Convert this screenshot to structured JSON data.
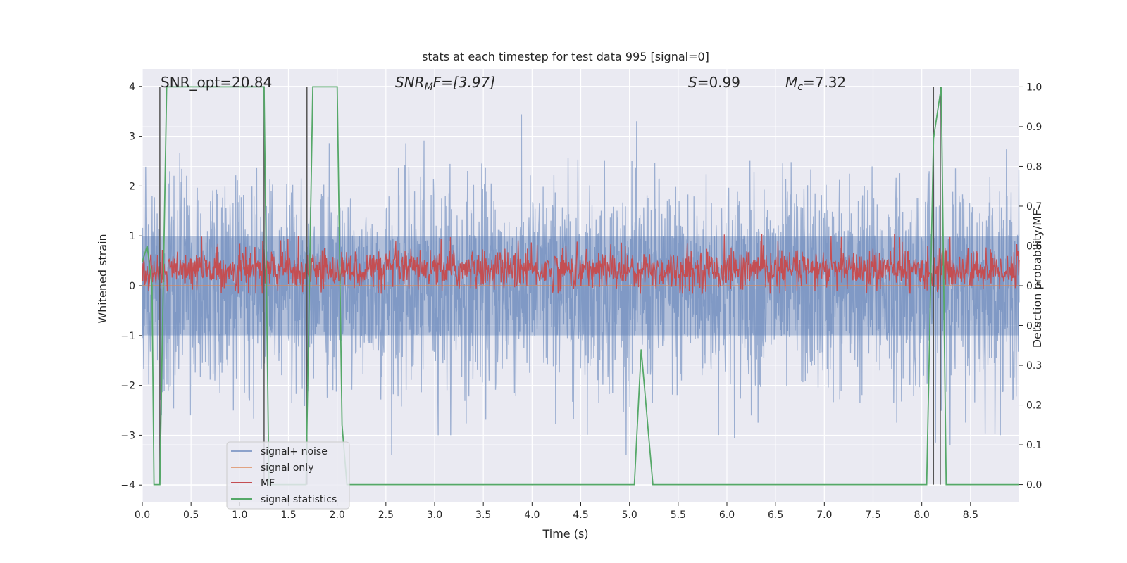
{
  "chart_data": {
    "type": "line",
    "title": "stats at each timestep for test data 995 [signal=0]",
    "xlabel": "Time (s)",
    "ylabel_left": "Whitened strain",
    "ylabel_right": "Detection probability/MF",
    "xlim": [
      0,
      9.0
    ],
    "ylim_left": [
      -4.0,
      4.0
    ],
    "ylim_right": [
      -0.045,
      1.045
    ],
    "x_ticks": [
      0.0,
      0.5,
      1.0,
      1.5,
      2.0,
      2.5,
      3.0,
      3.5,
      4.0,
      4.5,
      5.0,
      5.5,
      6.0,
      6.5,
      7.0,
      7.5,
      8.0,
      8.5
    ],
    "x_tick_labels": [
      "0.0",
      "0.5",
      "1.0",
      "1.5",
      "2.0",
      "2.5",
      "3.0",
      "3.5",
      "4.0",
      "4.5",
      "5.0",
      "5.5",
      "6.0",
      "6.5",
      "7.0",
      "7.5",
      "8.0",
      "8.5"
    ],
    "y_left_ticks": [
      -4,
      -3,
      -2,
      -1,
      0,
      1,
      2,
      3,
      4
    ],
    "y_left_tick_labels": [
      "−4",
      "−3",
      "−2",
      "−1",
      "0",
      "1",
      "2",
      "3",
      "4"
    ],
    "y_right_ticks": [
      0.0,
      0.1,
      0.2,
      0.3,
      0.4,
      0.5,
      0.6,
      0.7,
      0.8,
      0.9,
      1.0
    ],
    "y_right_tick_labels": [
      "0.0",
      "0.1",
      "0.2",
      "0.3",
      "0.4",
      "0.5",
      "0.6",
      "0.7",
      "0.8",
      "0.9",
      "1.0"
    ],
    "grid": true,
    "background": "#eaeaf2",
    "legend_position": "lower-left",
    "annotations": {
      "snr_opt": "SNR_opt=20.84",
      "snr_mf_base": "SNR",
      "snr_mf_sub": "M",
      "snr_mf_rest": "F=[3.97]",
      "s_stat_var": "S",
      "s_stat_rest": "=0.99",
      "mc_var": "M",
      "mc_sub": "c",
      "mc_rest": "=7.32"
    },
    "series": [
      {
        "name": "signal+ noise",
        "axis": "left",
        "color": "#4c72b0",
        "opacity": 0.5,
        "description_sample": "dense white-noise strain, amplitude roughly within ±3.5, dense band within ±2",
        "envelope_max": [
          2.7,
          3.1,
          3.2,
          3.3,
          3.4,
          3.5,
          3.7,
          3.6,
          3.9,
          4.0,
          3.3,
          3.5,
          3.1,
          3.2,
          3.8,
          3.4,
          3.2,
          3.0
        ],
        "envelope_min": [
          -2.6,
          -3.4,
          -3.1,
          -2.9,
          -3.2,
          -3.4,
          -3.0,
          -3.3,
          -3.1,
          -3.4,
          -3.6,
          -3.3,
          -3.2,
          -3.5,
          -3.6,
          -3.4,
          -3.2,
          -3.0
        ]
      },
      {
        "name": "signal only",
        "axis": "left",
        "color": "#dd8452",
        "values_description": "flat at 0",
        "x": [
          0.0,
          9.0
        ],
        "y": [
          0.0,
          0.0
        ]
      },
      {
        "name": "MF",
        "axis": "right",
        "color": "#c44e52",
        "values_description": "noisy matched-filter output between ~0.48 and ~0.62",
        "mean": 0.54,
        "min": 0.48,
        "max": 0.63
      },
      {
        "name": "signal statistics",
        "axis": "right",
        "color": "#55a868",
        "x": [
          0.0,
          0.05,
          0.1,
          0.12,
          0.18,
          0.25,
          1.25,
          1.3,
          1.4,
          1.6,
          1.68,
          1.75,
          2.0,
          2.05,
          2.1,
          2.2,
          5.05,
          5.12,
          5.24,
          8.05,
          8.12,
          8.2,
          8.25,
          9.0
        ],
        "y": [
          0.56,
          0.6,
          0.5,
          0.0,
          0.0,
          1.0,
          1.0,
          0.0,
          0.0,
          0.0,
          0.0,
          1.0,
          1.0,
          0.15,
          0.0,
          0.0,
          0.0,
          0.34,
          0.0,
          0.0,
          0.87,
          1.0,
          0.0,
          0.0
        ]
      }
    ],
    "vertical_lines": {
      "color": "#555555",
      "x": [
        0.18,
        1.25,
        1.69,
        8.12,
        8.19
      ],
      "y_from": 0.0,
      "y_to": 1.0,
      "axis": "right"
    }
  }
}
